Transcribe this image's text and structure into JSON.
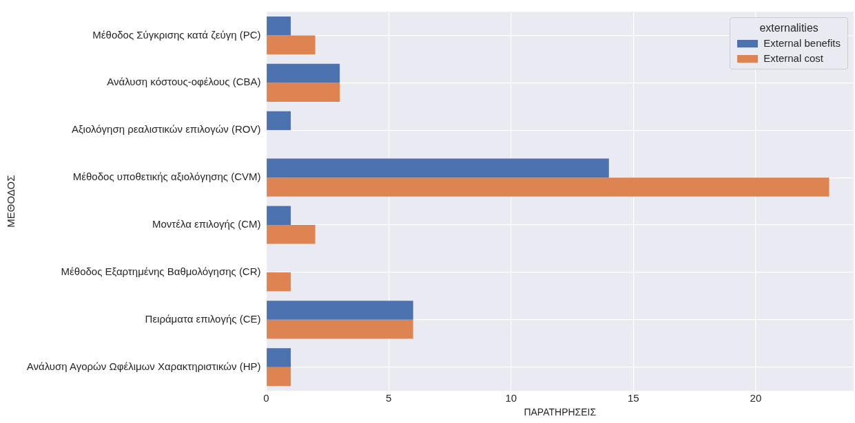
{
  "chart_data": {
    "type": "bar",
    "orientation": "horizontal",
    "categories": [
      "Μέθοδος Σύγκρισης κατά ζεύγη (PC)",
      "Ανάλυση κόστους-οφέλους (CBA)",
      "Αξιολόγηση ρεαλιστικών επιλογών (ROV)",
      "Μέθοδος υποθετικής αξιολόγησης (CVM)",
      "Μοντέλα επιλογής (CM)",
      "Μέθοδος Εξαρτημένης Βαθμολόγησης (CR)",
      "Πειράματα επιλογής (CE)",
      "Ανάλυση Αγορών Ωφέλιμων Χαρακτηριστικών (HP)"
    ],
    "series": [
      {
        "name": "External benefits",
        "color": "#4c72b0",
        "values": [
          1,
          3,
          1,
          14,
          1,
          null,
          6,
          1
        ]
      },
      {
        "name": "External cost",
        "color": "#dd8452",
        "values": [
          2,
          3,
          null,
          23,
          2,
          1,
          6,
          1
        ]
      }
    ],
    "xlabel": "ΠΑΡΑΤΗΡΗΣΕΙΣ",
    "ylabel": "ΜΕΘΟΔΟΣ",
    "legend_title": "externalities",
    "xlim": [
      0,
      24
    ],
    "xticks": [
      0,
      5,
      10,
      15,
      20
    ],
    "grid": true,
    "legend": "top right"
  }
}
